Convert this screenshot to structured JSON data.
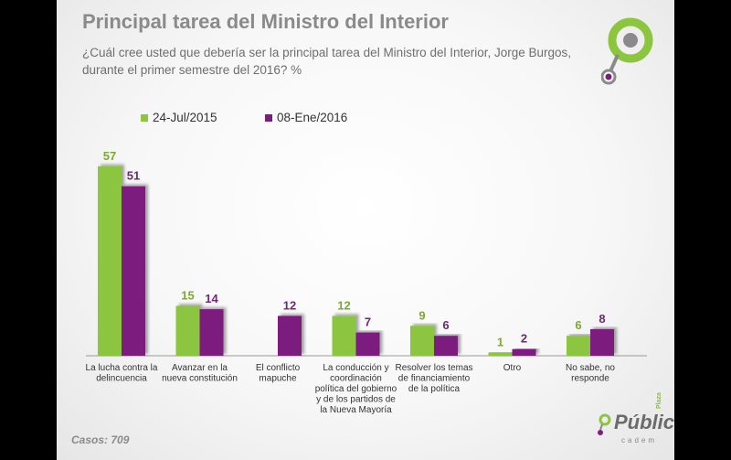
{
  "header": {
    "title": "Principal tarea del Ministro del Interior",
    "subtitle": "¿Cuál cree usted que debería ser la principal tarea del Ministro del Interior, Jorge Burgos, durante el primer semestre del 2016? %"
  },
  "footer": {
    "casos": "Casos: 709"
  },
  "brand": {
    "name": "Pública",
    "plaza": "Plaza",
    "sub": "cadem"
  },
  "colors": {
    "series1": "#8cc63f",
    "series2": "#7b1f7e",
    "label1": "#7aaa2f",
    "label2": "#6b2a72"
  },
  "chart_data": {
    "type": "bar",
    "categories": [
      [
        "La lucha contra la",
        "delincuencia"
      ],
      [
        "Avanzar en la",
        "nueva constitución"
      ],
      [
        "El conflicto",
        "mapuche"
      ],
      [
        "La conducción y",
        "coordinación",
        "política del gobierno",
        "y de los partidos de",
        "la Nueva Mayoría"
      ],
      [
        "Resolver los temas",
        "de financiamiento",
        "de la política"
      ],
      [
        "Otro"
      ],
      [
        "No sabe, no",
        "responde"
      ]
    ],
    "series": [
      {
        "name": "24-Jul/2015",
        "values": [
          57,
          15,
          null,
          12,
          9,
          1,
          6
        ]
      },
      {
        "name": "08-Ene/2016",
        "values": [
          51,
          14,
          12,
          7,
          6,
          2,
          8
        ]
      }
    ],
    "ylim": [
      0,
      60
    ],
    "grid": false,
    "legend_position": "top-left"
  }
}
